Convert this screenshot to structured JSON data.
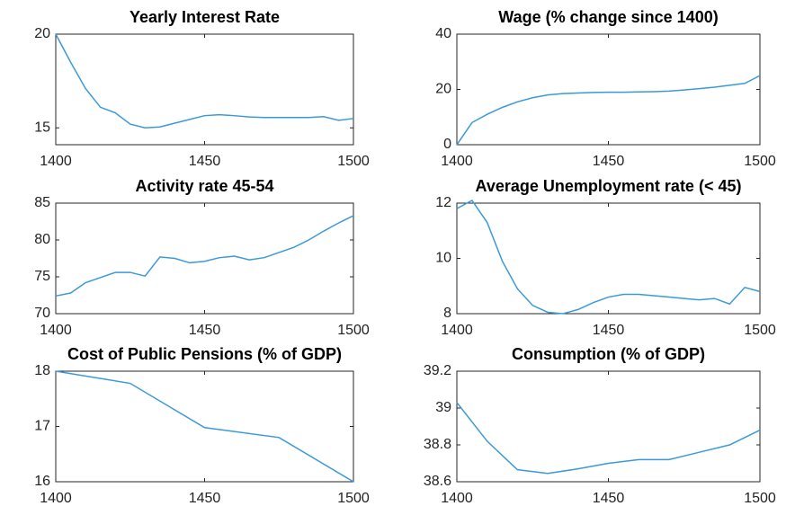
{
  "chart_data": [
    {
      "type": "line",
      "title": "Yearly Interest Rate",
      "x": [
        1400,
        1405,
        1410,
        1415,
        1420,
        1425,
        1430,
        1435,
        1440,
        1445,
        1450,
        1455,
        1460,
        1465,
        1470,
        1475,
        1480,
        1485,
        1490,
        1495,
        1500
      ],
      "series": [
        {
          "color": "#3a9ad9",
          "values": [
            20,
            18.5,
            17.1,
            16.1,
            15.8,
            15.2,
            15.0,
            15.05,
            15.25,
            15.45,
            15.65,
            15.7,
            15.65,
            15.58,
            15.55,
            15.55,
            15.55,
            15.55,
            15.6,
            15.4,
            15.5
          ]
        }
      ],
      "xlim": [
        1400,
        1500
      ],
      "xticks": [
        1400,
        1450,
        1500
      ],
      "ylim": [
        14.1,
        20
      ],
      "yticks": [
        15,
        20
      ]
    },
    {
      "type": "line",
      "title": "Wage (% change since 1400)",
      "x": [
        1400,
        1405,
        1410,
        1415,
        1420,
        1425,
        1430,
        1435,
        1440,
        1445,
        1450,
        1455,
        1460,
        1465,
        1470,
        1475,
        1480,
        1485,
        1490,
        1495,
        1500
      ],
      "series": [
        {
          "color": "#3a9ad9",
          "values": [
            0,
            8,
            11,
            13.5,
            15.5,
            17,
            18,
            18.5,
            18.7,
            18.9,
            19,
            19,
            19.1,
            19.2,
            19.4,
            19.8,
            20.3,
            20.8,
            21.5,
            22.2,
            25
          ]
        }
      ],
      "xlim": [
        1400,
        1500
      ],
      "xticks": [
        1400,
        1450,
        1500
      ],
      "ylim": [
        0,
        40
      ],
      "yticks": [
        0,
        20,
        40
      ]
    },
    {
      "type": "line",
      "title": "Activity rate 45-54",
      "x": [
        1400,
        1405,
        1410,
        1415,
        1420,
        1425,
        1430,
        1435,
        1440,
        1445,
        1450,
        1455,
        1460,
        1465,
        1470,
        1475,
        1480,
        1485,
        1490,
        1495,
        1500
      ],
      "series": [
        {
          "color": "#3a9ad9",
          "values": [
            72.4,
            72.8,
            74.2,
            74.9,
            75.6,
            75.6,
            75.1,
            77.7,
            77.5,
            76.9,
            77.1,
            77.6,
            77.8,
            77.3,
            77.6,
            78.3,
            79,
            80,
            81.2,
            82.3,
            83.3
          ]
        }
      ],
      "xlim": [
        1400,
        1500
      ],
      "xticks": [
        1400,
        1450,
        1500
      ],
      "ylim": [
        70,
        85
      ],
      "yticks": [
        70,
        75,
        80,
        85
      ]
    },
    {
      "type": "line",
      "title": "Average Unemployment rate (< 45)",
      "x": [
        1400,
        1405,
        1410,
        1415,
        1420,
        1425,
        1430,
        1435,
        1440,
        1445,
        1450,
        1455,
        1460,
        1465,
        1470,
        1475,
        1480,
        1485,
        1490,
        1495,
        1500
      ],
      "series": [
        {
          "color": "#3a9ad9",
          "values": [
            11.8,
            12.1,
            11.3,
            9.9,
            8.9,
            8.3,
            8.05,
            8.0,
            8.15,
            8.4,
            8.6,
            8.7,
            8.7,
            8.65,
            8.6,
            8.55,
            8.5,
            8.55,
            8.35,
            8.95,
            8.8
          ]
        }
      ],
      "xlim": [
        1400,
        1500
      ],
      "xticks": [
        1400,
        1450,
        1500
      ],
      "ylim": [
        8,
        12
      ],
      "yticks": [
        8,
        10,
        12
      ]
    },
    {
      "type": "line",
      "title": "Cost of Public Pensions (% of GDP)",
      "x": [
        1400,
        1425,
        1450,
        1475,
        1500
      ],
      "series": [
        {
          "color": "#3a9ad9",
          "values": [
            18,
            17.78,
            16.98,
            16.8,
            16.0
          ]
        }
      ],
      "xlim": [
        1400,
        1500
      ],
      "xticks": [
        1400,
        1450,
        1500
      ],
      "ylim": [
        16,
        18
      ],
      "yticks": [
        16,
        17,
        18
      ]
    },
    {
      "type": "line",
      "title": "Consumption (% of GDP)",
      "x": [
        1400,
        1410,
        1420,
        1430,
        1440,
        1450,
        1460,
        1470,
        1480,
        1490,
        1500
      ],
      "series": [
        {
          "color": "#3a9ad9",
          "values": [
            39.03,
            38.82,
            38.665,
            38.645,
            38.67,
            38.7,
            38.72,
            38.72,
            38.76,
            38.8,
            38.88
          ]
        }
      ],
      "xlim": [
        1400,
        1500
      ],
      "xticks": [
        1400,
        1450,
        1500
      ],
      "ylim": [
        38.6,
        39.2
      ],
      "yticks": [
        38.6,
        38.8,
        39,
        39.2
      ]
    }
  ]
}
